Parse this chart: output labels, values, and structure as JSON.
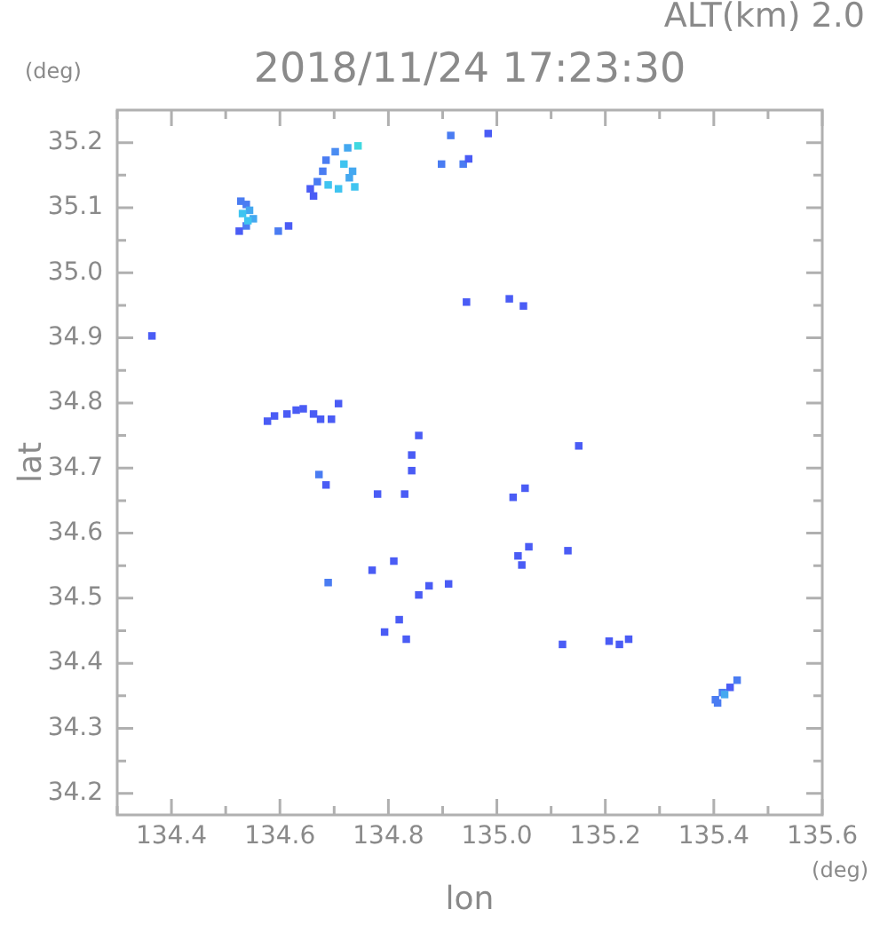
{
  "chart_data": {
    "type": "scatter",
    "title": "2018/11/24 17:23:30",
    "subtitle": "ALT(km) 2.0",
    "xlabel": "lon",
    "ylabel": "lat",
    "annotations": [
      "(deg)",
      "(deg)"
    ],
    "xlim": [
      134.3,
      135.6
    ],
    "ylim": [
      34.167,
      35.25
    ],
    "xticks": [
      {
        "value": 134.3,
        "label": null
      },
      134.4,
      {
        "value": 134.5,
        "label": null
      },
      134.6,
      {
        "value": 134.7,
        "label": null
      },
      134.8,
      {
        "value": 134.9,
        "label": null
      },
      {
        "value": 135.0,
        "label": "135.0"
      },
      {
        "value": 135.1,
        "label": null
      },
      135.2,
      {
        "value": 135.3,
        "label": null
      },
      135.4,
      {
        "value": 135.5,
        "label": null
      },
      135.6
    ],
    "yticks": [
      34.2,
      {
        "value": 34.25,
        "label": null
      },
      34.3,
      {
        "value": 34.35,
        "label": null
      },
      34.4,
      {
        "value": 34.45,
        "label": null
      },
      34.5,
      {
        "value": 34.55,
        "label": null
      },
      34.6,
      {
        "value": 34.65,
        "label": null
      },
      34.7,
      {
        "value": 34.75,
        "label": null
      },
      34.8,
      {
        "value": 34.85,
        "label": null
      },
      34.9,
      {
        "value": 34.95,
        "label": null
      },
      {
        "value": 35.0,
        "label": "35.0"
      },
      {
        "value": 35.05,
        "label": null
      },
      35.1,
      {
        "value": 35.15,
        "label": null
      },
      35.2
    ],
    "grid": false,
    "legend": false,
    "marker": "square",
    "series": [
      {
        "x": [
          134.528,
          134.538,
          134.544,
          134.531,
          134.551,
          134.538,
          134.525,
          134.541,
          134.702,
          134.725,
          134.744,
          134.685,
          134.679,
          134.718,
          134.734,
          134.669,
          134.656,
          134.662,
          134.689,
          134.708,
          134.728,
          134.738,
          134.597,
          134.616,
          134.915,
          134.984,
          134.898,
          134.938,
          134.948,
          134.944,
          135.023,
          135.049,
          134.364,
          134.577,
          134.59,
          134.613,
          134.63,
          134.643,
          134.662,
          134.675,
          134.695,
          134.708,
          134.856,
          134.843,
          134.843,
          134.672,
          134.685,
          134.78,
          134.83,
          135.151,
          135.052,
          135.03,
          135.059,
          135.039,
          135.046,
          135.131,
          134.81,
          134.77,
          134.689,
          134.875,
          134.911,
          134.856,
          134.82,
          134.793,
          134.833,
          135.121,
          135.226,
          135.243,
          135.207,
          135.403,
          135.416,
          135.43,
          135.443,
          135.42,
          135.407
        ],
        "values": [
          35.11,
          35.105,
          35.096,
          35.091,
          35.083,
          35.072,
          35.064,
          35.08,
          35.186,
          35.192,
          35.195,
          35.173,
          35.156,
          35.167,
          35.156,
          35.14,
          35.129,
          35.118,
          35.135,
          35.129,
          35.146,
          35.132,
          35.064,
          35.072,
          35.211,
          35.214,
          35.167,
          35.167,
          35.175,
          34.955,
          34.96,
          34.949,
          34.903,
          34.772,
          34.78,
          34.783,
          34.789,
          34.791,
          34.783,
          34.775,
          34.775,
          34.799,
          34.75,
          34.72,
          34.696,
          34.69,
          34.674,
          34.66,
          34.66,
          34.734,
          34.669,
          34.655,
          34.579,
          34.565,
          34.551,
          34.573,
          34.557,
          34.543,
          34.524,
          34.519,
          34.522,
          34.505,
          34.467,
          34.448,
          34.437,
          34.429,
          34.429,
          34.437,
          34.434,
          34.344,
          34.355,
          34.363,
          34.374,
          34.352,
          34.339
        ],
        "colors": [
          "#4a7cf2",
          "#4a7cf2",
          "#44a8f0",
          "#3fc4f0",
          "#44a8f0",
          "#4a7cf2",
          "#4a5cf5",
          "#3fc4f0",
          "#4a8cf2",
          "#44a8f0",
          "#40d8e0",
          "#4a7cf2",
          "#4a7cf2",
          "#3fc4f0",
          "#44a8f0",
          "#4a7cf2",
          "#4a5cf5",
          "#4a5cf5",
          "#3fc4f0",
          "#3fc4f0",
          "#44a8f0",
          "#3fc4f0",
          "#4a7cf2",
          "#4a5cf5",
          "#4a7cf2",
          "#4a5cf5",
          "#4a7cf2",
          "#4a7cf2",
          "#4a5cf5",
          "#4a5cf5",
          "#4a5cf5",
          "#4a5cf5",
          "#4a5cf5",
          "#4a5cf5",
          "#4a5cf5",
          "#4a5cf5",
          "#4a5cf5",
          "#4a5cf5",
          "#4a5cf5",
          "#4a5cf5",
          "#4a5cf5",
          "#4a5cf5",
          "#4a5cf5",
          "#4a5cf5",
          "#4a5cf5",
          "#4a7cf2",
          "#4a5cf5",
          "#4a5cf5",
          "#4a5cf5",
          "#4a5cf5",
          "#4a5cf5",
          "#4a5cf5",
          "#4a5cf5",
          "#4a5cf5",
          "#4a5cf5",
          "#4a5cf5",
          "#4a5cf5",
          "#4a5cf5",
          "#4a7cf2",
          "#4a5cf5",
          "#4a5cf5",
          "#4a5cf5",
          "#4a5cf5",
          "#4a5cf5",
          "#4a5cf5",
          "#4a5cf5",
          "#4a5cf5",
          "#4a5cf5",
          "#4a5cf5",
          "#4a7cf2",
          "#4a7cf2",
          "#4a5cf5",
          "#4a7cf2",
          "#44a8f0",
          "#4a7cf2"
        ]
      }
    ]
  }
}
